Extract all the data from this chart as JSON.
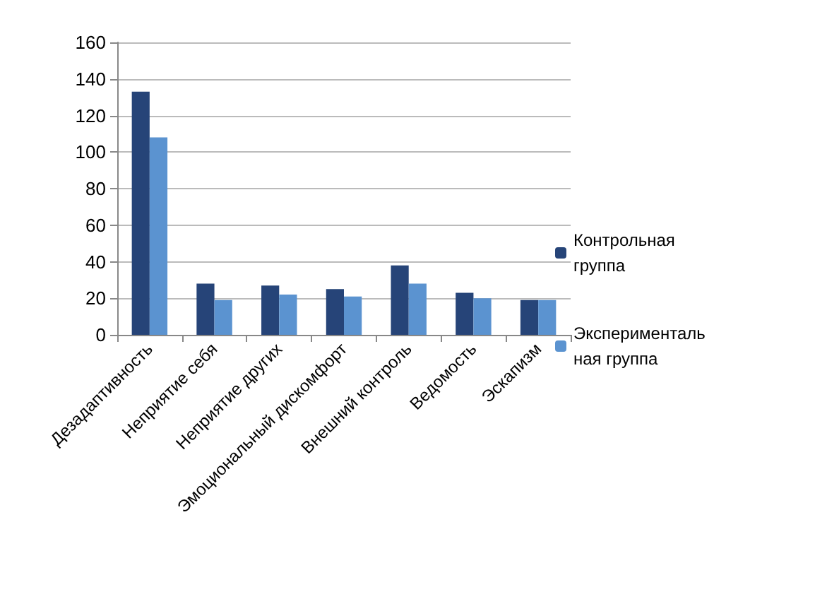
{
  "chart_data": {
    "type": "bar",
    "categories": [
      "Дезадаптивность",
      "Неприятие себя",
      "Неприятие других",
      "Эмоциональный дискомфорт",
      "Внешний контроль",
      "Ведомость",
      "Эскапизм"
    ],
    "series": [
      {
        "name": "Контрольная группа",
        "color": "#264478",
        "values": [
          133,
          28,
          27,
          25,
          38,
          23,
          19
        ]
      },
      {
        "name": "Экспериментальная группа",
        "color": "#5b93d0",
        "values": [
          108,
          19,
          22,
          21,
          28,
          20,
          19
        ]
      }
    ],
    "ylim": [
      0,
      160
    ],
    "yticks": [
      0,
      20,
      40,
      60,
      80,
      100,
      120,
      140,
      160
    ],
    "grid": "y",
    "legend": "right"
  }
}
